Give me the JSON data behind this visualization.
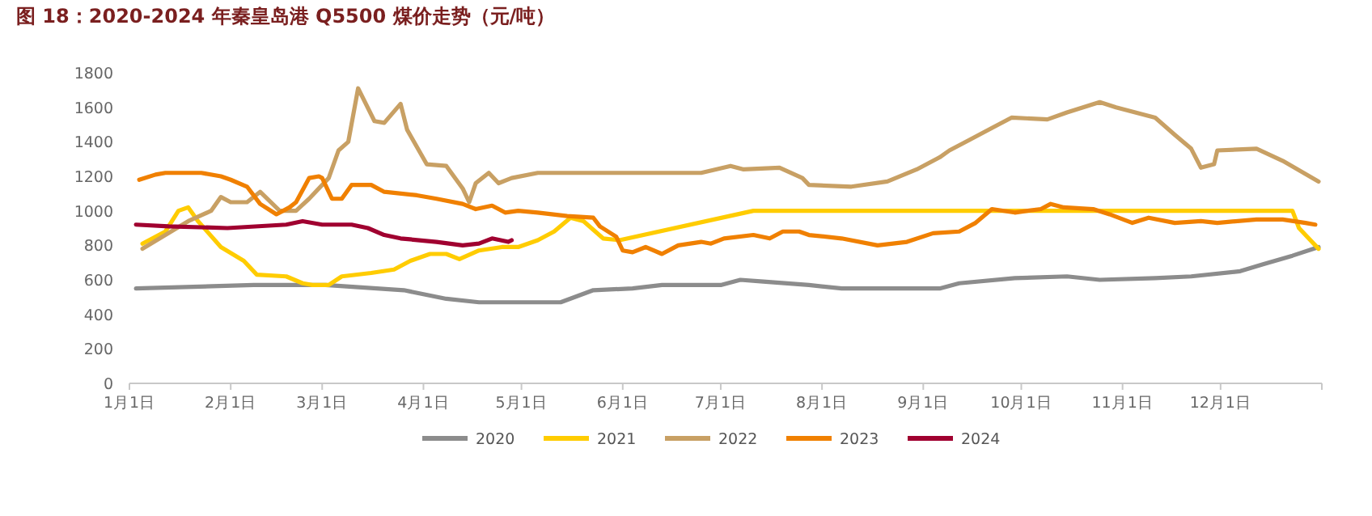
{
  "chart_data": {
    "type": "line",
    "title": "图 18：2020-2024 年秦皇岛港 Q5500 煤价走势（元/吨）",
    "xlim": [
      "--01-01",
      "--12-31"
    ],
    "ylim": [
      0,
      1800
    ],
    "yticks": [
      0,
      200,
      400,
      600,
      800,
      1000,
      1200,
      1400,
      1600,
      1800
    ],
    "xticks": [
      {
        "value": "--01-01",
        "label": "1月1日"
      },
      {
        "value": "--02-01",
        "label": "2月1日"
      },
      {
        "value": "--03-01",
        "label": "3月1日"
      },
      {
        "value": "--04-01",
        "label": "4月1日"
      },
      {
        "value": "--05-01",
        "label": "5月1日"
      },
      {
        "value": "--06-01",
        "label": "6月1日"
      },
      {
        "value": "--07-01",
        "label": "7月1日"
      },
      {
        "value": "--08-01",
        "label": "8月1日"
      },
      {
        "value": "--09-01",
        "label": "9月1日"
      },
      {
        "value": "--10-01",
        "label": "10月1日"
      },
      {
        "value": "--11-01",
        "label": "11月1日"
      },
      {
        "value": "--12-01",
        "label": "12月1日"
      }
    ],
    "grid": false,
    "legend": "bottom",
    "marker": "none",
    "line_style": "solid",
    "series": [
      {
        "name": "2020",
        "color": "#8c8c8c",
        "x": [
          "--01-03",
          "--02-08",
          "--03-02",
          "--03-26",
          "--04-08",
          "--04-18",
          "--04-28",
          "--05-13",
          "--05-23",
          "--06-04",
          "--06-13",
          "--07-01",
          "--07-07",
          "--07-14",
          "--07-28",
          "--08-07",
          "--08-23",
          "--09-06",
          "--09-12",
          "--09-29",
          "--10-15",
          "--10-25",
          "--11-11",
          "--11-22",
          "--12-07",
          "--12-14",
          "--12-23",
          "--12-31"
        ],
        "values": [
          550,
          570,
          570,
          540,
          490,
          470,
          470,
          470,
          540,
          550,
          570,
          570,
          600,
          590,
          570,
          550,
          550,
          550,
          580,
          610,
          620,
          600,
          610,
          620,
          650,
          690,
          740,
          790
        ]
      },
      {
        "name": "2021",
        "color": "#ffcc00",
        "x": [
          "--01-05",
          "--01-12",
          "--01-16",
          "--01-19",
          "--01-22",
          "--01-29",
          "--02-05",
          "--02-09",
          "--02-18",
          "--02-23",
          "--02-26",
          "--03-03",
          "--03-07",
          "--03-16",
          "--03-23",
          "--03-28",
          "--04-03",
          "--04-08",
          "--04-12",
          "--04-18",
          "--04-25",
          "--04-30",
          "--05-06",
          "--05-11",
          "--05-16",
          "--05-20",
          "--05-26",
          "--05-31",
          "--07-11",
          "--09-06",
          "--12-23",
          "--12-25",
          "--12-31"
        ],
        "values": [
          810,
          880,
          1000,
          1020,
          940,
          790,
          710,
          630,
          620,
          580,
          570,
          570,
          620,
          640,
          660,
          710,
          750,
          750,
          720,
          770,
          790,
          790,
          830,
          880,
          960,
          940,
          840,
          830,
          1000,
          1000,
          1000,
          900,
          780
        ]
      },
      {
        "name": "2022",
        "color": "#c8a064",
        "x": [
          "--01-05",
          "--01-12",
          "--01-19",
          "--01-26",
          "--01-29",
          "--02-01",
          "--02-06",
          "--02-10",
          "--02-16",
          "--02-21",
          "--02-25",
          "--03-03",
          "--03-06",
          "--03-09",
          "--03-12",
          "--03-17",
          "--03-20",
          "--03-25",
          "--03-27",
          "--04-02",
          "--04-08",
          "--04-13",
          "--04-15",
          "--04-17",
          "--04-21",
          "--04-24",
          "--04-28",
          "--05-06",
          "--06-25",
          "--07-04",
          "--07-08",
          "--07-19",
          "--07-26",
          "--07-28",
          "--08-10",
          "--08-21",
          "--08-30",
          "--09-06",
          "--09-09",
          "--09-15",
          "--09-22",
          "--09-28",
          "--10-09",
          "--10-15",
          "--10-25",
          "--10-30",
          "--11-07",
          "--11-11",
          "--11-17",
          "--11-22",
          "--11-25",
          "--11-29",
          "--11-30",
          "--12-12",
          "--12-20",
          "--12-31"
        ],
        "values": [
          780,
          860,
          940,
          1000,
          1080,
          1050,
          1050,
          1110,
          1000,
          1000,
          1070,
          1190,
          1350,
          1400,
          1710,
          1520,
          1510,
          1620,
          1470,
          1270,
          1260,
          1130,
          1050,
          1160,
          1220,
          1160,
          1190,
          1220,
          1220,
          1260,
          1240,
          1250,
          1190,
          1150,
          1140,
          1170,
          1240,
          1310,
          1350,
          1410,
          1480,
          1540,
          1530,
          1570,
          1630,
          1600,
          1560,
          1540,
          1440,
          1360,
          1250,
          1270,
          1350,
          1360,
          1290,
          1170
        ]
      },
      {
        "name": "2023",
        "color": "#f08000",
        "x": [
          "--01-04",
          "--01-09",
          "--01-12",
          "--01-23",
          "--01-29",
          "--02-01",
          "--02-06",
          "--02-10",
          "--02-15",
          "--02-19",
          "--02-21",
          "--02-25",
          "--02-28",
          "--03-01",
          "--03-04",
          "--03-07",
          "--03-10",
          "--03-16",
          "--03-20",
          "--03-30",
          "--04-05",
          "--04-13",
          "--04-17",
          "--04-22",
          "--04-26",
          "--04-30",
          "--05-06",
          "--05-15",
          "--05-23",
          "--05-25",
          "--05-30",
          "--06-01",
          "--06-04",
          "--06-08",
          "--06-13",
          "--06-18",
          "--06-25",
          "--06-28",
          "--07-02",
          "--07-11",
          "--07-16",
          "--07-20",
          "--07-25",
          "--07-28",
          "--08-07",
          "--08-18",
          "--08-27",
          "--09-04",
          "--09-12",
          "--09-17",
          "--09-22",
          "--09-29",
          "--10-07",
          "--10-10",
          "--10-14",
          "--10-23",
          "--10-28",
          "--11-04",
          "--11-09",
          "--11-17",
          "--11-25",
          "--11-30",
          "--12-12",
          "--12-20",
          "--12-27",
          "--12-30"
        ],
        "values": [
          1180,
          1210,
          1220,
          1220,
          1200,
          1180,
          1140,
          1040,
          980,
          1020,
          1050,
          1190,
          1200,
          1190,
          1070,
          1070,
          1150,
          1150,
          1110,
          1090,
          1070,
          1040,
          1010,
          1030,
          990,
          1000,
          990,
          970,
          960,
          910,
          850,
          770,
          760,
          790,
          750,
          800,
          820,
          810,
          840,
          860,
          840,
          880,
          880,
          860,
          840,
          800,
          820,
          870,
          880,
          930,
          1010,
          990,
          1010,
          1040,
          1020,
          1010,
          980,
          930,
          960,
          930,
          940,
          930,
          950,
          950,
          930,
          920
        ]
      },
      {
        "name": "2024",
        "color": "#a00030",
        "x": [
          "--01-03",
          "--01-13",
          "--01-31",
          "--02-18",
          "--02-23",
          "--03-01",
          "--03-10",
          "--03-15",
          "--03-20",
          "--03-25",
          "--04-05",
          "--04-13",
          "--04-18",
          "--04-22",
          "--04-27",
          "--04-28"
        ],
        "values": [
          920,
          910,
          900,
          920,
          940,
          920,
          920,
          900,
          860,
          840,
          820,
          800,
          810,
          840,
          820,
          830
        ]
      }
    ]
  }
}
